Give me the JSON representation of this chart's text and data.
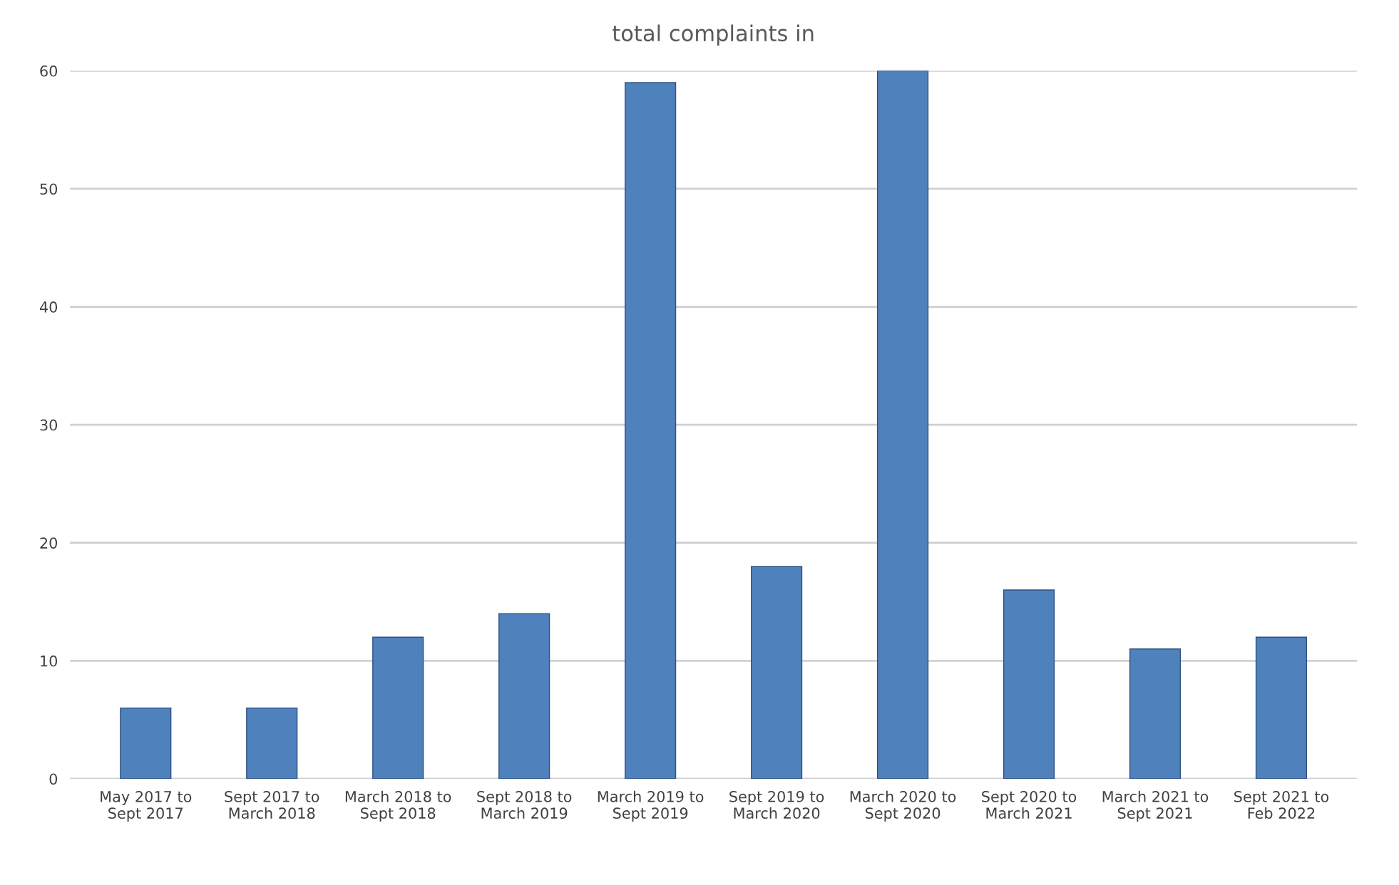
{
  "chart_data": {
    "type": "bar",
    "title": "total complaints in",
    "categories": [
      "May 2017 to\nSept 2017",
      "Sept 2017 to\nMarch 2018",
      "March 2018 to\nSept 2018",
      "Sept 2018 to\nMarch 2019",
      "March 2019 to\nSept 2019",
      "Sept 2019 to\nMarch 2020",
      "March 2020 to\nSept 2020",
      "Sept 2020 to\nMarch 2021",
      "March 2021 to\nSept 2021",
      "Sept 2021 to\nFeb 2022"
    ],
    "values": [
      6,
      6,
      12,
      14,
      59,
      18,
      60,
      16,
      11,
      12
    ],
    "color": "#4f81bd",
    "ylim": [
      0,
      60
    ],
    "yticks": [
      0,
      10,
      20,
      30,
      40,
      50,
      60
    ],
    "grid": "y"
  }
}
